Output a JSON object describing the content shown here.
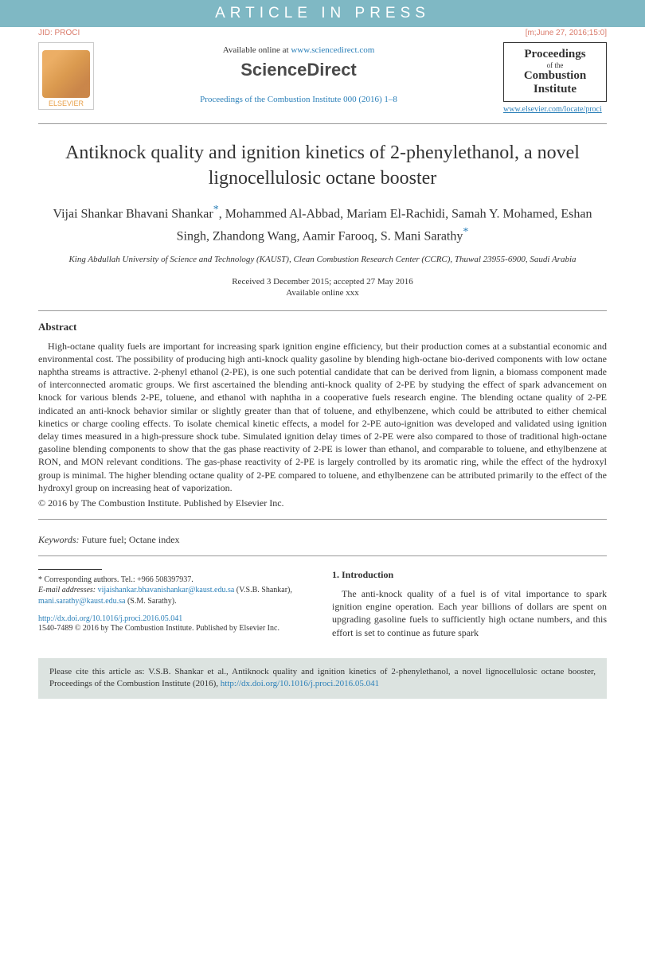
{
  "banner": "ARTICLE IN PRESS",
  "meta": {
    "jid": "JID: PROCI",
    "date": "[m;June 27, 2016;15:0]"
  },
  "header": {
    "elsevier": "ELSEVIER",
    "available_text": "Available online at ",
    "available_link": "www.sciencedirect.com",
    "sciencedirect": "ScienceDirect",
    "journal_ref": "Proceedings of the Combustion Institute 000 (2016) 1–8",
    "journal_box": {
      "line1": "Proceedings",
      "line2": "of the",
      "line3": "Combustion",
      "line4": "Institute"
    },
    "journal_link": "www.elsevier.com/locate/proci"
  },
  "title": "Antiknock quality and ignition kinetics of 2-phenylethanol, a novel lignocellulosic octane booster",
  "authors": "Vijai Shankar Bhavani Shankar*, Mohammed Al-Abbad, Mariam El-Rachidi, Samah Y. Mohamed, Eshan Singh, Zhandong Wang, Aamir Farooq, S. Mani Sarathy*",
  "affiliation": "King Abdullah University of Science and Technology (KAUST), Clean Combustion Research Center (CCRC), Thuwal 23955-6900, Saudi Arabia",
  "dates": "Received 3 December 2015; accepted 27 May 2016",
  "available_xxx": "Available online xxx",
  "abstract": {
    "heading": "Abstract",
    "text": "High-octane quality fuels are important for increasing spark ignition engine efficiency, but their production comes at a substantial economic and environmental cost. The possibility of producing high anti-knock quality gasoline by blending high-octane bio-derived components with low octane naphtha streams is attractive. 2-phenyl ethanol (2-PE), is one such potential candidate that can be derived from lignin, a biomass component made of interconnected aromatic groups. We first ascertained the blending anti-knock quality of 2-PE by studying the effect of spark advancement on knock for various blends 2-PE, toluene, and ethanol with naphtha in a cooperative fuels research engine. The blending octane quality of 2-PE indicated an anti-knock behavior similar or slightly greater than that of toluene, and ethylbenzene, which could be attributed to either chemical kinetics or charge cooling effects. To isolate chemical kinetic effects, a model for 2-PE auto-ignition was developed and validated using ignition delay times measured in a high-pressure shock tube. Simulated ignition delay times of 2-PE were also compared to those of traditional high-octane gasoline blending components to show that the gas phase reactivity of 2-PE is lower than ethanol, and comparable to toluene, and ethylbenzene at RON, and MON relevant conditions. The gas-phase reactivity of 2-PE is largely controlled by its aromatic ring, while the effect of the hydroxyl group is minimal. The higher blending octane quality of 2-PE compared to toluene, and ethylbenzene can be attributed primarily to the effect of the hydroxyl group on increasing heat of vaporization.",
    "copyright": "© 2016 by The Combustion Institute. Published by Elsevier Inc."
  },
  "keywords": {
    "label": "Keywords:",
    "text": " Future fuel; Octane index"
  },
  "footnote": {
    "corresponding": "* Corresponding authors. Tel.: +966 508397937.",
    "email_label": "E-mail addresses:",
    "email1": "vijaishankar.bhavanishankar@kaust.edu.sa",
    "name1": " (V.S.B. Shankar), ",
    "email2": "mani.sarathy@kaust.edu.sa",
    "name2": " (S.M. Sarathy)."
  },
  "doi": "http://dx.doi.org/10.1016/j.proci.2016.05.041",
  "issn": "1540-7489 © 2016 by The Combustion Institute. Published by Elsevier Inc.",
  "intro": {
    "heading": "1. Introduction",
    "text": "The anti-knock quality of a fuel is of vital importance to spark ignition engine operation. Each year billions of dollars are spent on upgrading gasoline fuels to sufficiently high octane numbers, and this effort is set to continue as future spark"
  },
  "citebox": {
    "text": "Please cite this article as: V.S.B. Shankar et al., Antiknock quality and ignition kinetics of 2-phenylethanol, a novel lignocellulosic octane booster, Proceedings of the Combustion Institute (2016), ",
    "link": "http://dx.doi.org/10.1016/j.proci.2016.05.041"
  }
}
